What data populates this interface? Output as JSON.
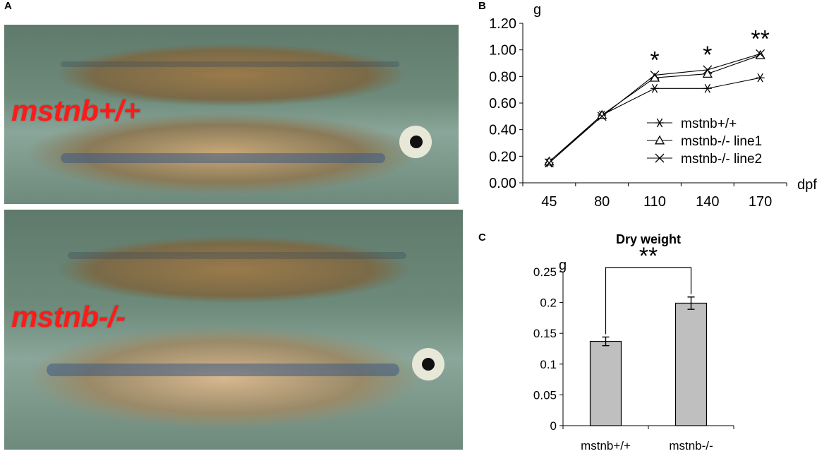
{
  "panels": {
    "a_label": "A",
    "b_label": "B",
    "c_label": "C"
  },
  "photo": {
    "wild_type_label": "mstnb+/+",
    "mutant_label": "mstnb-/-"
  },
  "chart_data": [
    {
      "type": "line",
      "panel": "B",
      "ylabel": "g",
      "xlabel": "dpf",
      "categories": [
        "45",
        "80",
        "110",
        "140",
        "170"
      ],
      "ylim": [
        0,
        1.2
      ],
      "yticks": [
        "0.00",
        "0.20",
        "0.40",
        "0.60",
        "0.80",
        "1.00",
        "1.20"
      ],
      "grid": false,
      "legend_position": "right",
      "series": [
        {
          "name": "mstnb+/+",
          "marker": "asterisk",
          "values": [
            0.15,
            0.51,
            0.71,
            0.71,
            0.79
          ]
        },
        {
          "name": "mstnb-/- line1",
          "marker": "triangle",
          "values": [
            0.16,
            0.51,
            0.79,
            0.82,
            0.96
          ]
        },
        {
          "name": "mstnb-/- line2",
          "marker": "x",
          "values": [
            0.15,
            0.5,
            0.81,
            0.85,
            0.97
          ]
        }
      ],
      "annotations": [
        {
          "category": "110",
          "text": "*"
        },
        {
          "category": "140",
          "text": "*"
        },
        {
          "category": "170",
          "text": "**"
        }
      ]
    },
    {
      "type": "bar",
      "panel": "C",
      "title": "Dry weight",
      "ylabel": "g",
      "categories": [
        "mstnb+/+",
        "mstnb-/-"
      ],
      "values": [
        0.137,
        0.199
      ],
      "errors": [
        0.007,
        0.01
      ],
      "ylim": [
        0,
        0.25
      ],
      "yticks": [
        "0",
        "0.05",
        "0.1",
        "0.15",
        "0.2",
        "0.25"
      ],
      "bar_color": "#bfbfbf",
      "significance": "**"
    }
  ]
}
